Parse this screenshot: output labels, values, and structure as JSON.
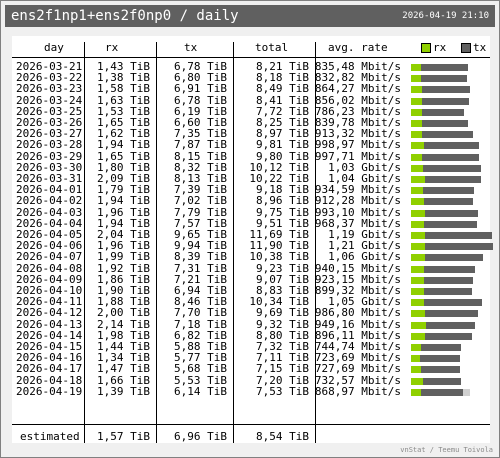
{
  "header": {
    "title": "ens2f1np1+ens2f0np0 / daily",
    "timestamp": "2026-04-19 21:10"
  },
  "columns": {
    "day": "day",
    "rx": "rx",
    "tx": "tx",
    "total": "total",
    "rate": "avg. rate"
  },
  "legend": {
    "rx": "rx",
    "tx": "tx"
  },
  "colors": {
    "rx": "#90d000",
    "tx": "#606060",
    "estimate": "#d0d0d0"
  },
  "rows": [
    {
      "day": "2026-03-21",
      "rx": "1,43 TiB",
      "tx": "6,78 TiB",
      "total": "8,21 TiB",
      "rate": "835,48 Mbit/s",
      "rx_tib": 1.43,
      "tx_tib": 6.78
    },
    {
      "day": "2026-03-22",
      "rx": "1,38 TiB",
      "tx": "6,80 TiB",
      "total": "8,18 TiB",
      "rate": "832,82 Mbit/s",
      "rx_tib": 1.38,
      "tx_tib": 6.8
    },
    {
      "day": "2026-03-23",
      "rx": "1,58 TiB",
      "tx": "6,91 TiB",
      "total": "8,49 TiB",
      "rate": "864,27 Mbit/s",
      "rx_tib": 1.58,
      "tx_tib": 6.91
    },
    {
      "day": "2026-03-24",
      "rx": "1,63 TiB",
      "tx": "6,78 TiB",
      "total": "8,41 TiB",
      "rate": "856,02 Mbit/s",
      "rx_tib": 1.63,
      "tx_tib": 6.78
    },
    {
      "day": "2026-03-25",
      "rx": "1,53 TiB",
      "tx": "6,19 TiB",
      "total": "7,72 TiB",
      "rate": "786,23 Mbit/s",
      "rx_tib": 1.53,
      "tx_tib": 6.19
    },
    {
      "day": "2026-03-26",
      "rx": "1,65 TiB",
      "tx": "6,60 TiB",
      "total": "8,25 TiB",
      "rate": "839,78 Mbit/s",
      "rx_tib": 1.65,
      "tx_tib": 6.6
    },
    {
      "day": "2026-03-27",
      "rx": "1,62 TiB",
      "tx": "7,35 TiB",
      "total": "8,97 TiB",
      "rate": "913,32 Mbit/s",
      "rx_tib": 1.62,
      "tx_tib": 7.35
    },
    {
      "day": "2026-03-28",
      "rx": "1,94 TiB",
      "tx": "7,87 TiB",
      "total": "9,81 TiB",
      "rate": "998,97 Mbit/s",
      "rx_tib": 1.94,
      "tx_tib": 7.87
    },
    {
      "day": "2026-03-29",
      "rx": "1,65 TiB",
      "tx": "8,15 TiB",
      "total": "9,80 TiB",
      "rate": "997,71 Mbit/s",
      "rx_tib": 1.65,
      "tx_tib": 8.15
    },
    {
      "day": "2026-03-30",
      "rx": "1,80 TiB",
      "tx": "8,32 TiB",
      "total": "10,12 TiB",
      "rate": "1,03 Gbit/s",
      "rx_tib": 1.8,
      "tx_tib": 8.32
    },
    {
      "day": "2026-03-31",
      "rx": "2,09 TiB",
      "tx": "8,13 TiB",
      "total": "10,22 TiB",
      "rate": "1,04 Gbit/s",
      "rx_tib": 2.09,
      "tx_tib": 8.13
    },
    {
      "day": "2026-04-01",
      "rx": "1,79 TiB",
      "tx": "7,39 TiB",
      "total": "9,18 TiB",
      "rate": "934,59 Mbit/s",
      "rx_tib": 1.79,
      "tx_tib": 7.39
    },
    {
      "day": "2026-04-02",
      "rx": "1,94 TiB",
      "tx": "7,02 TiB",
      "total": "8,96 TiB",
      "rate": "912,28 Mbit/s",
      "rx_tib": 1.94,
      "tx_tib": 7.02
    },
    {
      "day": "2026-04-03",
      "rx": "1,96 TiB",
      "tx": "7,79 TiB",
      "total": "9,75 TiB",
      "rate": "993,10 Mbit/s",
      "rx_tib": 1.96,
      "tx_tib": 7.79
    },
    {
      "day": "2026-04-04",
      "rx": "1,94 TiB",
      "tx": "7,57 TiB",
      "total": "9,51 TiB",
      "rate": "968,37 Mbit/s",
      "rx_tib": 1.94,
      "tx_tib": 7.57
    },
    {
      "day": "2026-04-05",
      "rx": "2,04 TiB",
      "tx": "9,65 TiB",
      "total": "11,69 TiB",
      "rate": "1,19 Gbit/s",
      "rx_tib": 2.04,
      "tx_tib": 9.65
    },
    {
      "day": "2026-04-06",
      "rx": "1,96 TiB",
      "tx": "9,94 TiB",
      "total": "11,90 TiB",
      "rate": "1,21 Gbit/s",
      "rx_tib": 1.96,
      "tx_tib": 9.94
    },
    {
      "day": "2026-04-07",
      "rx": "1,99 TiB",
      "tx": "8,39 TiB",
      "total": "10,38 TiB",
      "rate": "1,06 Gbit/s",
      "rx_tib": 1.99,
      "tx_tib": 8.39
    },
    {
      "day": "2026-04-08",
      "rx": "1,92 TiB",
      "tx": "7,31 TiB",
      "total": "9,23 TiB",
      "rate": "940,15 Mbit/s",
      "rx_tib": 1.92,
      "tx_tib": 7.31
    },
    {
      "day": "2026-04-09",
      "rx": "1,86 TiB",
      "tx": "7,21 TiB",
      "total": "9,07 TiB",
      "rate": "923,15 Mbit/s",
      "rx_tib": 1.86,
      "tx_tib": 7.21
    },
    {
      "day": "2026-04-10",
      "rx": "1,90 TiB",
      "tx": "6,94 TiB",
      "total": "8,83 TiB",
      "rate": "899,32 Mbit/s",
      "rx_tib": 1.9,
      "tx_tib": 6.94
    },
    {
      "day": "2026-04-11",
      "rx": "1,88 TiB",
      "tx": "8,46 TiB",
      "total": "10,34 TiB",
      "rate": "1,05 Gbit/s",
      "rx_tib": 1.88,
      "tx_tib": 8.46
    },
    {
      "day": "2026-04-12",
      "rx": "2,00 TiB",
      "tx": "7,70 TiB",
      "total": "9,69 TiB",
      "rate": "986,80 Mbit/s",
      "rx_tib": 2.0,
      "tx_tib": 7.7
    },
    {
      "day": "2026-04-13",
      "rx": "2,14 TiB",
      "tx": "7,18 TiB",
      "total": "9,32 TiB",
      "rate": "949,16 Mbit/s",
      "rx_tib": 2.14,
      "tx_tib": 7.18
    },
    {
      "day": "2026-04-14",
      "rx": "1,98 TiB",
      "tx": "6,82 TiB",
      "total": "8,80 TiB",
      "rate": "896,11 Mbit/s",
      "rx_tib": 1.98,
      "tx_tib": 6.82
    },
    {
      "day": "2026-04-15",
      "rx": "1,44 TiB",
      "tx": "5,88 TiB",
      "total": "7,32 TiB",
      "rate": "744,74 Mbit/s",
      "rx_tib": 1.44,
      "tx_tib": 5.88
    },
    {
      "day": "2026-04-16",
      "rx": "1,34 TiB",
      "tx": "5,77 TiB",
      "total": "7,11 TiB",
      "rate": "723,69 Mbit/s",
      "rx_tib": 1.34,
      "tx_tib": 5.77
    },
    {
      "day": "2026-04-17",
      "rx": "1,47 TiB",
      "tx": "5,68 TiB",
      "total": "7,15 TiB",
      "rate": "727,69 Mbit/s",
      "rx_tib": 1.47,
      "tx_tib": 5.68
    },
    {
      "day": "2026-04-18",
      "rx": "1,66 TiB",
      "tx": "5,53 TiB",
      "total": "7,20 TiB",
      "rate": "732,57 Mbit/s",
      "rx_tib": 1.66,
      "tx_tib": 5.53
    },
    {
      "day": "2026-04-19",
      "rx": "1,39 TiB",
      "tx": "6,14 TiB",
      "total": "7,53 TiB",
      "rate": "868,97 Mbit/s",
      "rx_tib": 1.39,
      "tx_tib": 6.14,
      "estimated_total_tib": 8.54
    }
  ],
  "estimate": {
    "label": "estimated",
    "rx": "1,57 TiB",
    "tx": "6,96 TiB",
    "total": "8,54 TiB"
  },
  "footer": "vnStat / Teemu Toivola"
}
